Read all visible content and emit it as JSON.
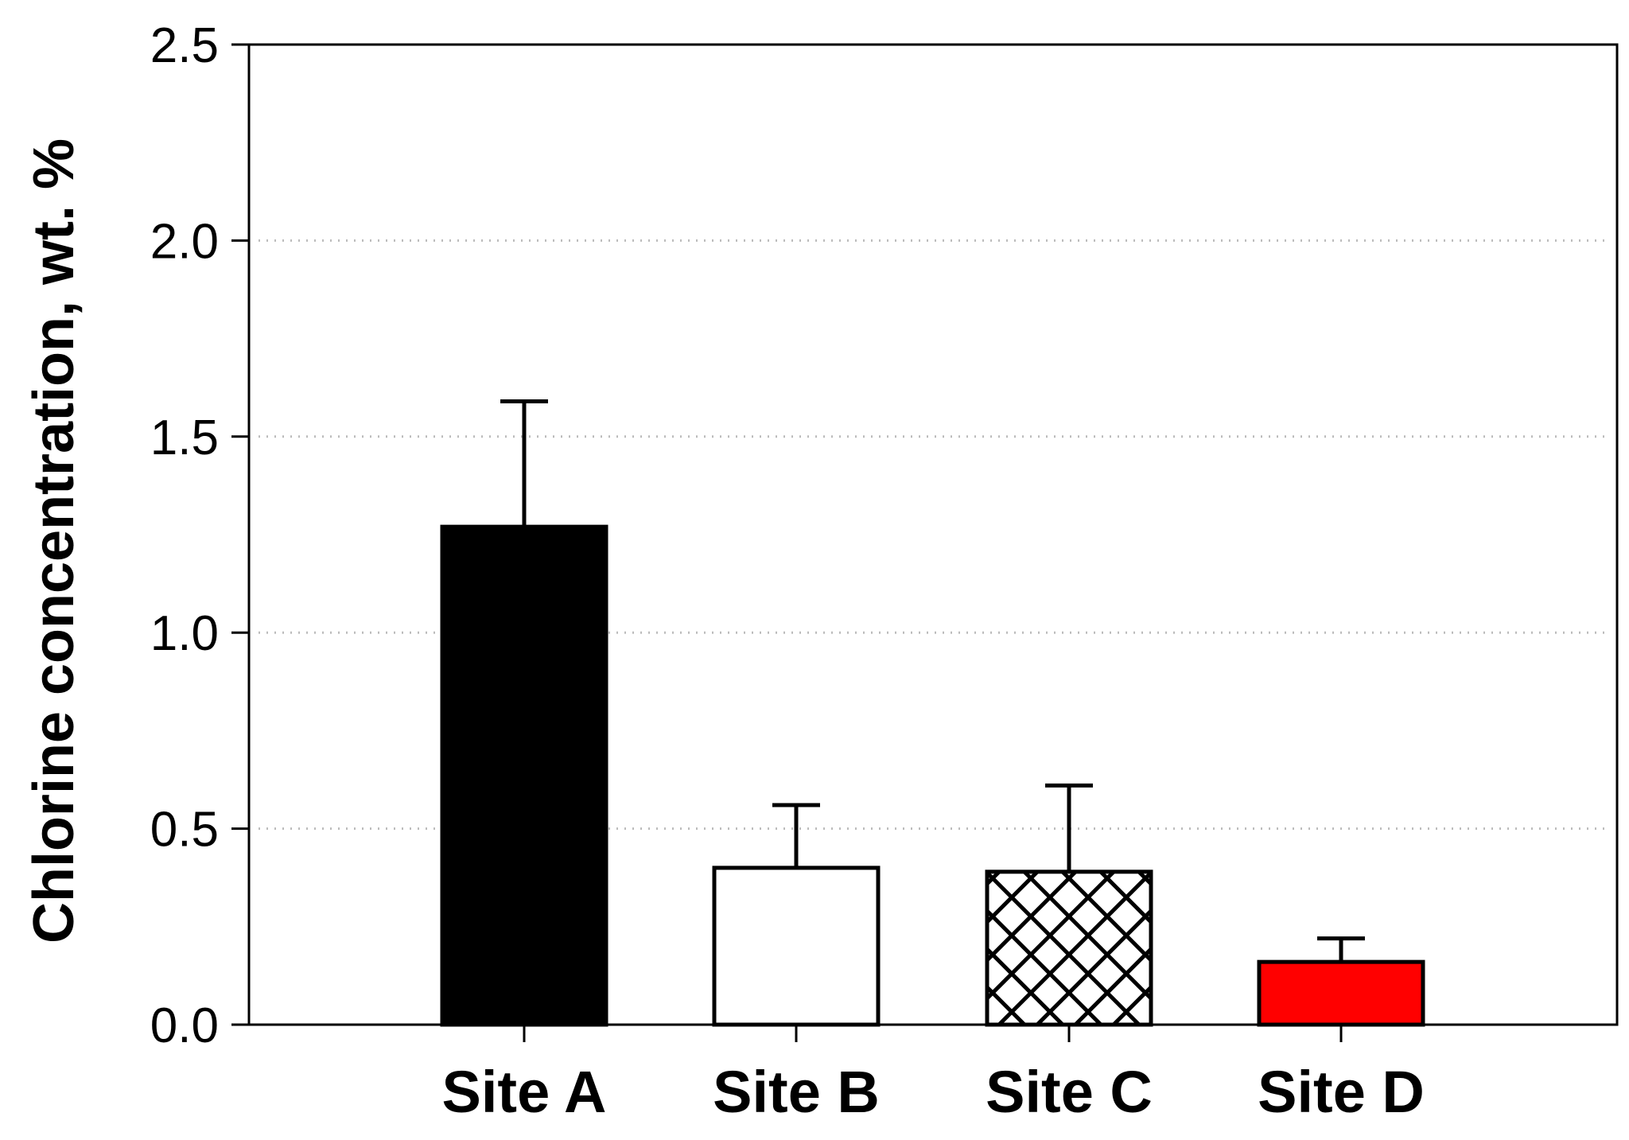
{
  "chart_data": {
    "type": "bar",
    "title": "",
    "xlabel": "",
    "ylabel": "Chlorine concentration, wt. %",
    "ylim": [
      0,
      2.5
    ],
    "yticks": [
      0.0,
      0.5,
      1.0,
      1.5,
      2.0,
      2.5
    ],
    "ytick_labels": [
      "0.0",
      "0.5",
      "1.0",
      "1.5",
      "2.0",
      "2.5"
    ],
    "grid": "horizontal dotted",
    "categories": [
      "Site A",
      "Site B",
      "Site C",
      "Site D"
    ],
    "values": [
      1.27,
      0.4,
      0.39,
      0.16
    ],
    "errors": [
      0.32,
      0.16,
      0.22,
      0.06
    ],
    "fills": [
      "solid-black",
      "white",
      "crosshatch",
      "solid-red"
    ],
    "colors": {
      "bar_black": "#000000",
      "bar_white": "#ffffff",
      "bar_red": "#ff0000",
      "grid": "#bbbbbb",
      "axis": "#000000"
    }
  }
}
